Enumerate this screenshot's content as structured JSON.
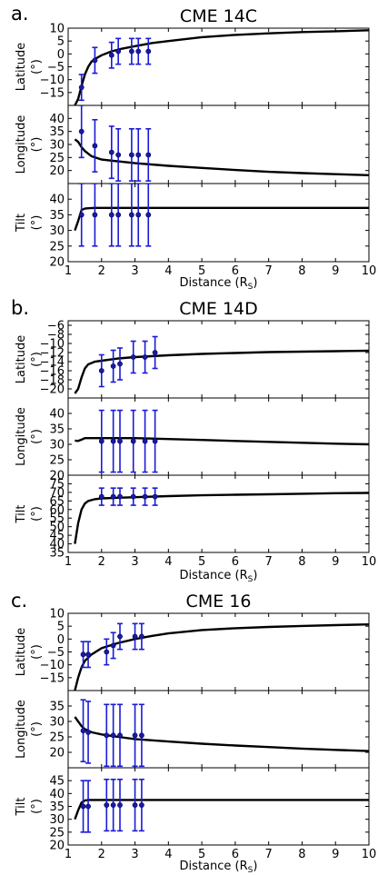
{
  "chart_data": [
    {
      "type": "line",
      "panel_letter": "a.",
      "title": "CME 14C",
      "xlabel": "Distance (R",
      "xlabel_sub": "S",
      "xlim": [
        1,
        10
      ],
      "xticks": [
        1,
        2,
        3,
        4,
        5,
        6,
        7,
        8,
        9,
        10
      ],
      "subplots": [
        {
          "ylabel": [
            "Latitude",
            "(°)"
          ],
          "ylim": [
            -20,
            10
          ],
          "yticks": [
            10,
            5,
            0,
            -5,
            -10,
            -15
          ],
          "model_curve": {
            "x": [
              1.2,
              1.3,
              1.4,
              1.5,
              1.6,
              1.7,
              1.8,
              2,
              2.3,
              2.6,
              3,
              3.5,
              4,
              5,
              6,
              7,
              8,
              9,
              10
            ],
            "y": [
              -20,
              -17.5,
              -12.5,
              -8,
              -5,
              -3,
              -2,
              -0.5,
              1,
              2,
              3,
              4.2,
              5,
              6.5,
              7.4,
              8,
              8.5,
              8.8,
              9.2
            ]
          },
          "points": {
            "x": [
              1.4,
              1.8,
              2.3,
              2.5,
              2.9,
              3.1,
              3.4
            ],
            "y": [
              -13,
              -2.5,
              -0.5,
              1,
              1,
              1,
              1
            ],
            "err": [
              5,
              5,
              5,
              5,
              5,
              5,
              5
            ]
          }
        },
        {
          "ylabel": [
            "Longitude",
            "(°)"
          ],
          "ylim": [
            15,
            45
          ],
          "yticks": [
            40,
            35,
            30,
            25,
            20
          ],
          "model_curve": {
            "x": [
              1.2,
              1.3,
              1.4,
              1.5,
              1.7,
              2,
              2.5,
              3,
              4,
              5,
              6,
              7,
              8,
              9,
              10
            ],
            "y": [
              32,
              31,
              29,
              27.5,
              25.5,
              24.2,
              23.5,
              22.8,
              21.8,
              21,
              20.2,
              19.5,
              19,
              18.6,
              18.2
            ]
          },
          "points": {
            "x": [
              1.4,
              1.8,
              2.3,
              2.5,
              2.9,
              3.1,
              3.4
            ],
            "y": [
              35,
              29.5,
              27,
              26,
              26,
              26,
              26
            ],
            "err": [
              10,
              10,
              10,
              10,
              10,
              10,
              10
            ]
          }
        },
        {
          "ylabel": [
            "Tilt",
            "(°)"
          ],
          "ylim": [
            20,
            45
          ],
          "yticks": [
            40,
            35,
            30,
            25,
            20
          ],
          "model_curve": {
            "x": [
              1.2,
              1.3,
              1.4,
              1.5,
              1.6,
              1.8,
              2,
              3,
              4,
              5,
              6,
              7,
              8,
              9,
              10
            ],
            "y": [
              30,
              33,
              36.5,
              37,
              37.1,
              37.2,
              37.2,
              37.2,
              37.2,
              37.2,
              37.2,
              37.2,
              37.2,
              37.2,
              37.2
            ]
          },
          "points": {
            "x": [
              1.4,
              1.8,
              2.3,
              2.5,
              2.9,
              3.1,
              3.4
            ],
            "y": [
              35,
              35,
              35,
              35,
              35,
              35,
              35
            ],
            "err": [
              10,
              10,
              10,
              10,
              10,
              10,
              10
            ]
          }
        }
      ]
    },
    {
      "type": "line",
      "panel_letter": "b.",
      "title": "CME 14D",
      "xlabel": "Distance (R",
      "xlabel_sub": "S",
      "xlim": [
        1,
        10
      ],
      "xticks": [
        1,
        2,
        3,
        4,
        5,
        6,
        7,
        8,
        9,
        10
      ],
      "subplots": [
        {
          "ylabel": [
            "Latitude",
            "(°)"
          ],
          "ylim": [
            -22,
            -5
          ],
          "yticks": [
            -6,
            -8,
            -10,
            -12,
            -14,
            -16,
            -18,
            -20
          ],
          "model_curve": {
            "x": [
              1.2,
              1.3,
              1.4,
              1.5,
              1.6,
              1.8,
              2,
              2.5,
              3,
              4,
              5,
              6,
              7,
              8,
              9,
              10
            ],
            "y": [
              -21,
              -20,
              -17.5,
              -15.5,
              -14.6,
              -14,
              -13.8,
              -13.3,
              -13,
              -12.6,
              -12.3,
              -12.1,
              -11.9,
              -11.8,
              -11.7,
              -11.6
            ]
          },
          "points": {
            "x": [
              2,
              2.35,
              2.55,
              2.95,
              3.3,
              3.6
            ],
            "y": [
              -16,
              -15,
              -14.5,
              -13,
              -13,
              -12
            ],
            "err": [
              3.5,
              3.5,
              3.5,
              3.5,
              3.5,
              3.5
            ]
          }
        },
        {
          "ylabel": [
            "Longitude",
            "(°)"
          ],
          "ylim": [
            20,
            45
          ],
          "yticks": [
            40,
            35,
            30,
            25,
            20
          ],
          "model_curve": {
            "x": [
              1.2,
              1.3,
              1.4,
              1.5,
              1.8,
              2,
              3,
              4,
              5,
              6,
              7,
              8,
              9,
              10
            ],
            "y": [
              31.2,
              31.1,
              31.5,
              32,
              32,
              32,
              32,
              31.7,
              31.4,
              31.1,
              30.8,
              30.5,
              30.2,
              30
            ]
          },
          "points": {
            "x": [
              2,
              2.35,
              2.55,
              2.95,
              3.3,
              3.6
            ],
            "y": [
              31,
              31,
              31,
              31,
              31,
              31
            ],
            "err": [
              10,
              10,
              10,
              10,
              10,
              10
            ]
          }
        },
        {
          "ylabel": [
            "Tilt",
            "(°)"
          ],
          "ylim": [
            35,
            80
          ],
          "yticks": [
            75,
            70,
            65,
            60,
            55,
            50,
            45,
            40,
            35
          ],
          "model_curve": {
            "x": [
              1.2,
              1.3,
              1.4,
              1.5,
              1.6,
              1.8,
              2,
              3,
              4,
              5,
              6,
              7,
              8,
              9,
              10
            ],
            "y": [
              40,
              52,
              60,
              63.5,
              65,
              66,
              66.5,
              67.2,
              67.8,
              68.3,
              68.6,
              68.9,
              69.2,
              69.5,
              69.7
            ]
          },
          "points": {
            "x": [
              2,
              2.35,
              2.55,
              2.95,
              3.3,
              3.6
            ],
            "y": [
              67.5,
              67.5,
              67.5,
              67.5,
              67.5,
              67.5
            ],
            "err": [
              5,
              5,
              5,
              5,
              5,
              5
            ]
          }
        }
      ]
    },
    {
      "type": "line",
      "panel_letter": "c.",
      "title": "CME 16",
      "xlabel": "Distance (R",
      "xlabel_sub": "S",
      "xlim": [
        1,
        10
      ],
      "xticks": [
        1,
        2,
        3,
        4,
        5,
        6,
        7,
        8,
        9,
        10
      ],
      "subplots": [
        {
          "ylabel": [
            "Latitude",
            "(°)"
          ],
          "ylim": [
            -20,
            10
          ],
          "yticks": [
            10,
            5,
            0,
            -5,
            -10,
            -15
          ],
          "model_curve": {
            "x": [
              1.2,
              1.3,
              1.4,
              1.5,
              1.7,
              2,
              2.5,
              3,
              3.5,
              4,
              5,
              6,
              7,
              8,
              9,
              10
            ],
            "y": [
              -20,
              -15,
              -11,
              -8.5,
              -6,
              -3.5,
              -1.5,
              0,
              1.2,
              2.2,
              3.5,
              4.2,
              4.7,
              5.1,
              5.4,
              5.7
            ]
          },
          "points": {
            "x": [
              1.45,
              1.6,
              2.15,
              2.35,
              2.55,
              3.0,
              3.2
            ],
            "y": [
              -6,
              -6,
              -5,
              -2.5,
              1,
              1,
              1
            ],
            "err": [
              5,
              5,
              5,
              5,
              5,
              5,
              5
            ]
          }
        },
        {
          "ylabel": [
            "Longitude",
            "(°)"
          ],
          "ylim": [
            15,
            40
          ],
          "yticks": [
            35,
            30,
            25,
            20
          ],
          "model_curve": {
            "x": [
              1.2,
              1.3,
              1.4,
              1.5,
              1.7,
              2,
              2.5,
              3,
              4,
              5,
              6,
              7,
              8,
              9,
              10
            ],
            "y": [
              31.5,
              30,
              28.5,
              27.5,
              26.5,
              25.8,
              25,
              24.3,
              23.5,
              22.8,
              22.2,
              21.7,
              21.2,
              20.8,
              20.4
            ]
          },
          "points": {
            "x": [
              1.45,
              1.6,
              2.15,
              2.35,
              2.55,
              3.0,
              3.2
            ],
            "y": [
              27,
              26.5,
              25.5,
              25.5,
              25.5,
              25.5,
              25.5
            ],
            "err": [
              10,
              10,
              10,
              10,
              10,
              10,
              10
            ]
          }
        },
        {
          "ylabel": [
            "Tilt",
            "(°)"
          ],
          "ylim": [
            20,
            50
          ],
          "yticks": [
            45,
            40,
            35,
            30,
            25,
            20
          ],
          "model_curve": {
            "x": [
              1.2,
              1.3,
              1.4,
              1.5,
              1.6,
              1.8,
              2,
              3,
              4,
              5,
              6,
              7,
              8,
              9,
              10
            ],
            "y": [
              30,
              33.5,
              36.5,
              37.3,
              37.5,
              37.5,
              37.5,
              37.5,
              37.5,
              37.5,
              37.5,
              37.5,
              37.5,
              37.5,
              37.5
            ]
          },
          "points": {
            "x": [
              1.45,
              1.6,
              2.15,
              2.35,
              2.55,
              3.0,
              3.2
            ],
            "y": [
              35,
              35,
              35.5,
              35.5,
              35.5,
              35.5,
              35.5
            ],
            "err": [
              10,
              10,
              10,
              10,
              10,
              10,
              10
            ]
          }
        }
      ]
    }
  ]
}
